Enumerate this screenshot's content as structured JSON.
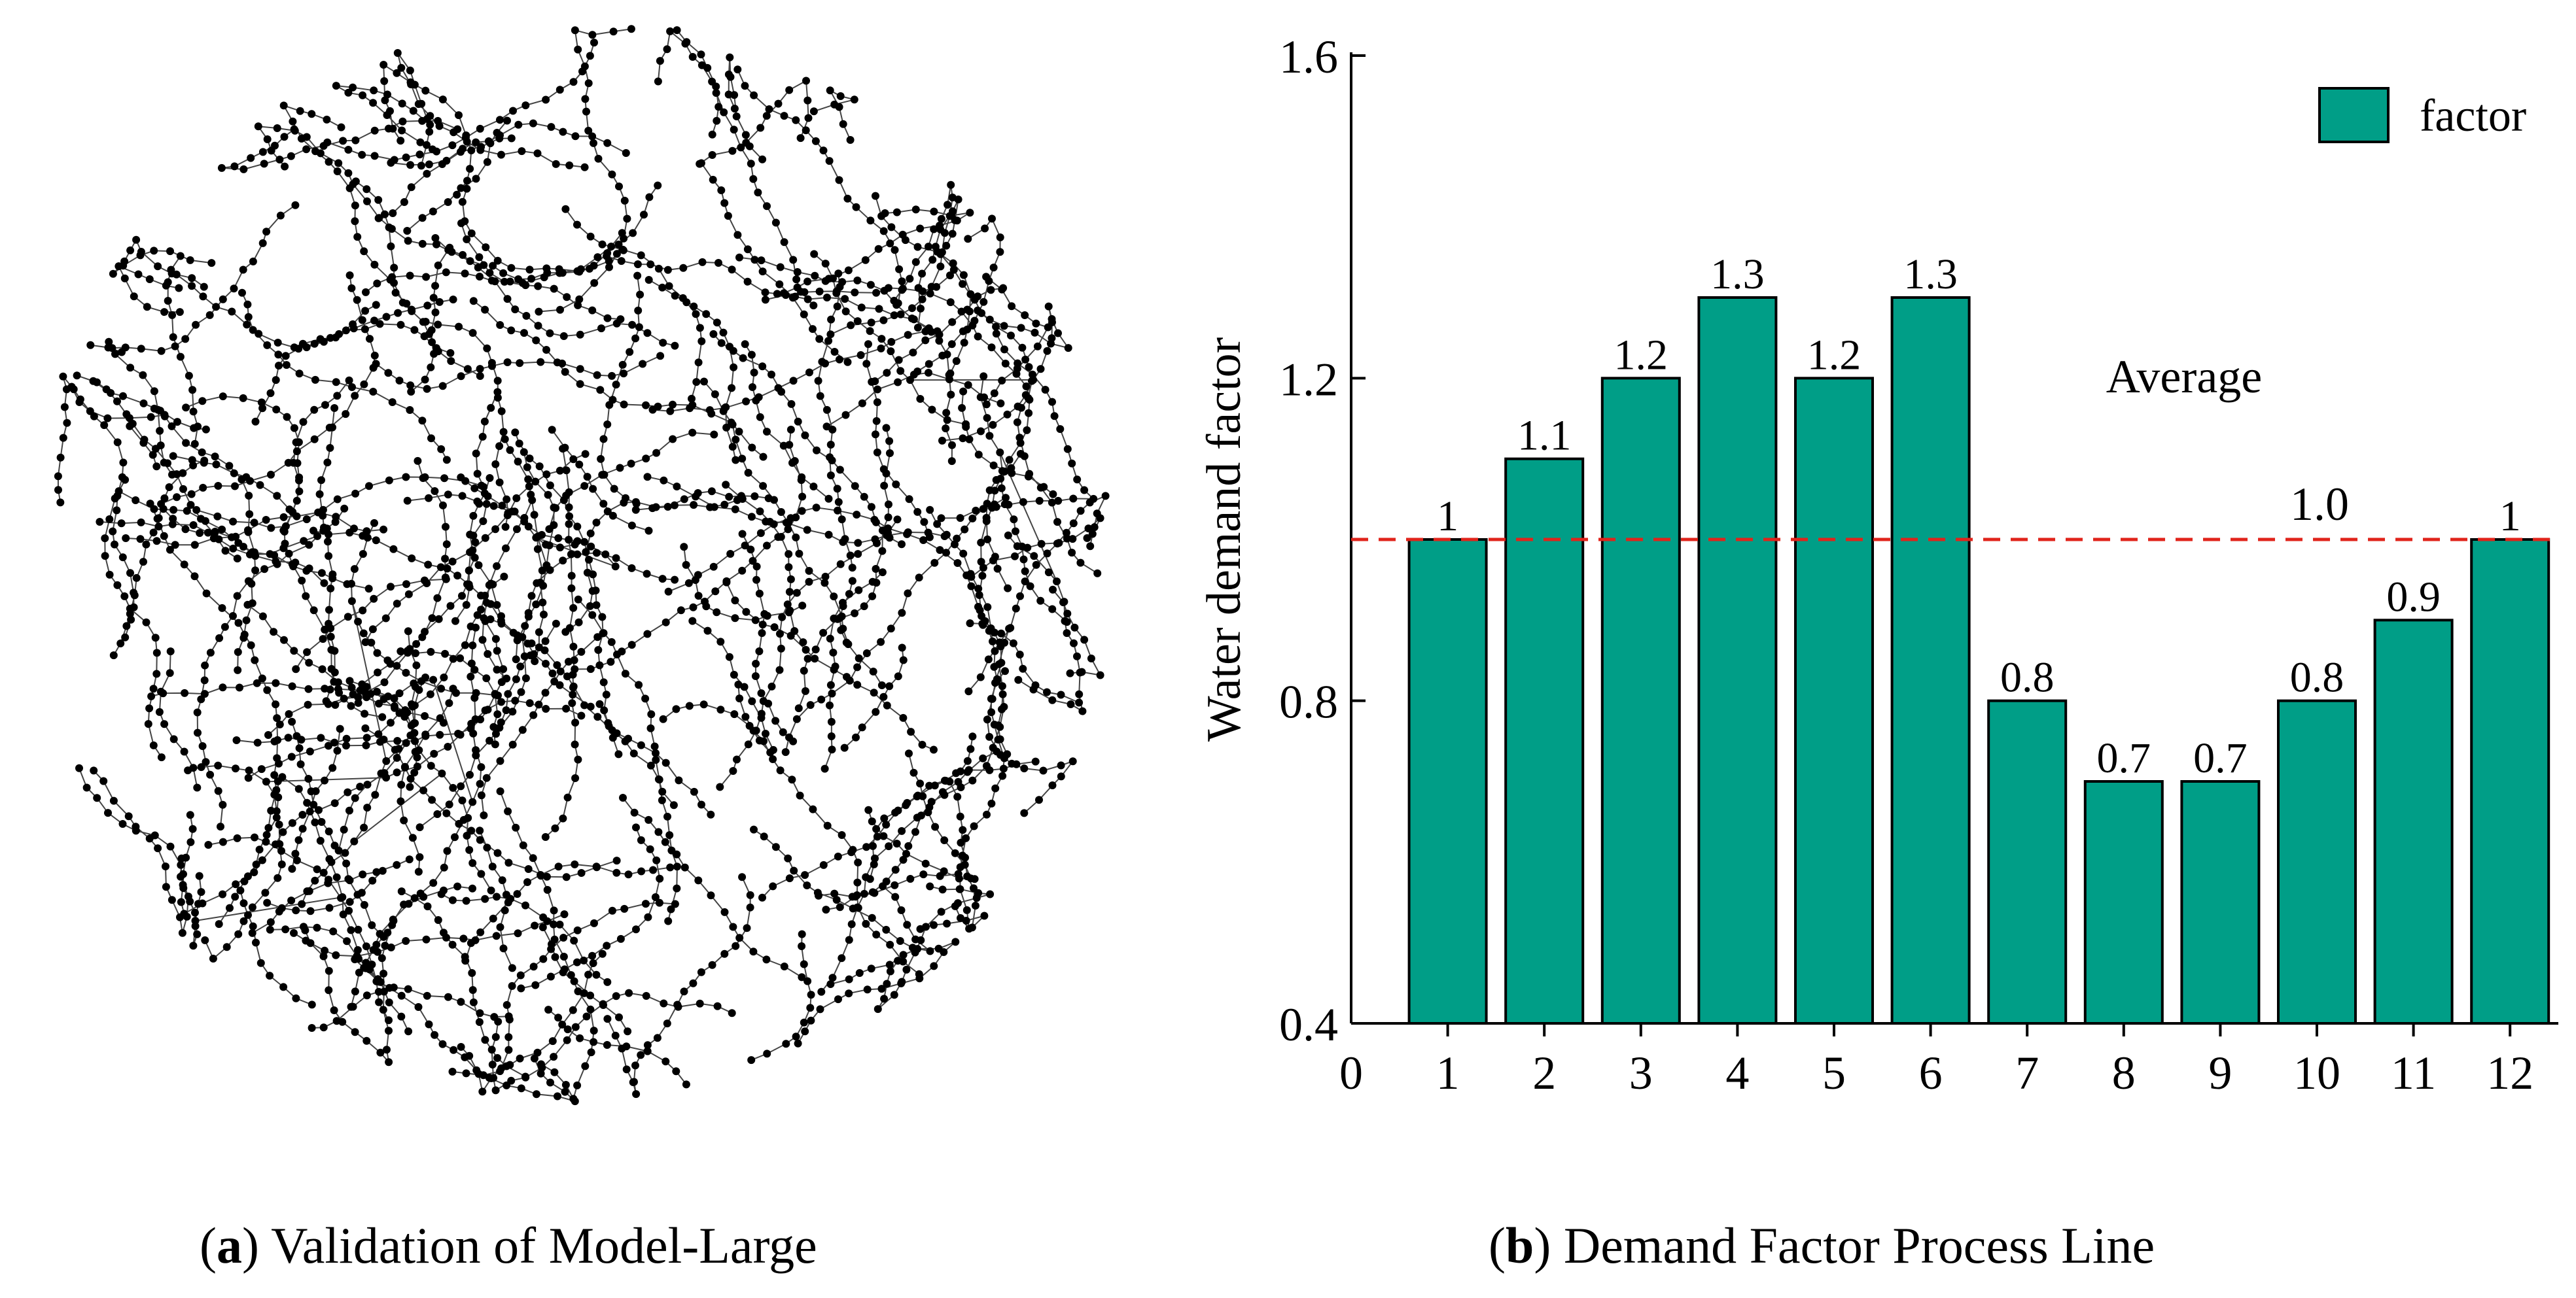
{
  "panel_a": {
    "caption_letter": "a",
    "caption_text": "Validation of Model-Large"
  },
  "panel_b": {
    "caption_letter": "b",
    "caption_text": "Demand Factor Process Line"
  },
  "colors": {
    "bar_fill": "#009E87",
    "bar_stroke": "#000000",
    "average_line": "#E0241B",
    "node": "#000000",
    "edge": "#444444"
  },
  "chart_data": {
    "type": "bar",
    "title": "",
    "xlabel": "",
    "ylabel": "Water demand factor",
    "categories": [
      "1",
      "2",
      "3",
      "4",
      "5",
      "6",
      "7",
      "8",
      "9",
      "10",
      "11",
      "12"
    ],
    "x_origin_label": "0",
    "series": [
      {
        "name": "factor",
        "values": [
          1.0,
          1.1,
          1.2,
          1.3,
          1.2,
          1.3,
          0.8,
          0.7,
          0.7,
          0.8,
          0.9,
          1.0
        ],
        "labels": [
          "1",
          "1.1",
          "1.2",
          "1.3",
          "1.2",
          "1.3",
          "0.8",
          "0.7",
          "0.7",
          "0.8",
          "0.9",
          "1"
        ]
      }
    ],
    "ylim": [
      0.4,
      1.6
    ],
    "yticks": [
      0.4,
      0.8,
      1.2,
      1.6
    ],
    "ytick_labels": [
      "0.4",
      "0.8",
      "1.2",
      "1.6"
    ],
    "reference_line": {
      "value": 1.0,
      "style": "dashed",
      "annotation_title": "Average",
      "annotation_value": "1.0"
    },
    "legend": {
      "position": "top-right",
      "entries": [
        "factor"
      ]
    },
    "grid": false
  }
}
